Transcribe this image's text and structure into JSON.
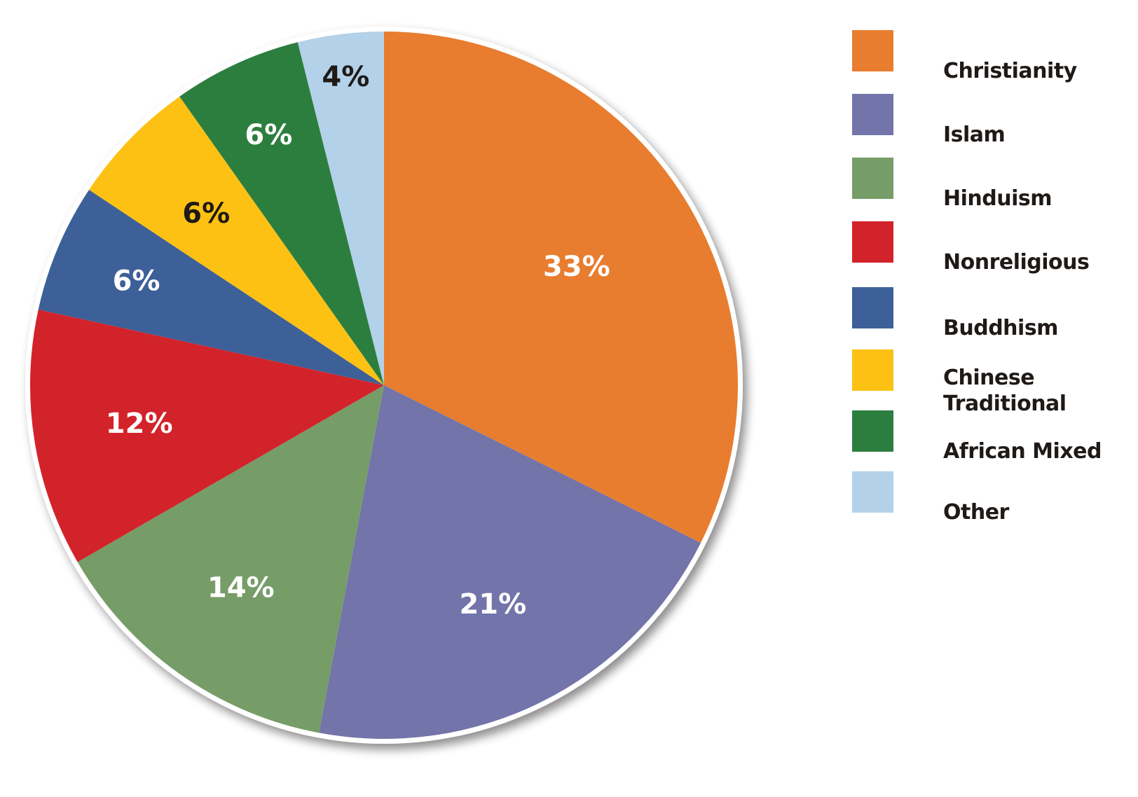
{
  "chart_data": {
    "type": "pie",
    "title": "",
    "start_angle": "12 o'clock",
    "direction": "clockwise",
    "legend_position": "right",
    "categories": [
      "Christianity",
      "Islam",
      "Hinduism",
      "Nonreligious",
      "Buddhism",
      "Chinese Traditional",
      "African Mixed",
      "Other"
    ],
    "values": [
      33,
      21,
      14,
      12,
      6,
      6,
      6,
      4
    ],
    "unit": "%",
    "slices": [
      {
        "label": "Christianity",
        "value": 33,
        "display": "33%",
        "color": "#e87d2f",
        "text_color": "#ffffff"
      },
      {
        "label": "Islam",
        "value": 21,
        "display": "21%",
        "color": "#7374a9",
        "text_color": "#ffffff"
      },
      {
        "label": "Hinduism",
        "value": 14,
        "display": "14%",
        "color": "#769c68",
        "text_color": "#ffffff"
      },
      {
        "label": "Nonreligious",
        "value": 12,
        "display": "12%",
        "color": "#d2232b",
        "text_color": "#ffffff"
      },
      {
        "label": "Buddhism",
        "value": 6,
        "display": "6%",
        "color": "#3d6098",
        "text_color": "#ffffff"
      },
      {
        "label": "Chinese Traditional",
        "value": 6,
        "display": "6%",
        "color": "#fdc114",
        "text_color": "#1f1a17"
      },
      {
        "label": "African Mixed",
        "value": 6,
        "display": "6%",
        "color": "#2c7e3f",
        "text_color": "#ffffff"
      },
      {
        "label": "Other",
        "value": 4,
        "display": "4%",
        "color": "#b3d1e8",
        "text_color": "#1f1a17"
      }
    ]
  },
  "legend": {
    "items": [
      {
        "label": "Christianity",
        "color": "#e87d2f"
      },
      {
        "label": "Islam",
        "color": "#7374a9"
      },
      {
        "label": "Hinduism",
        "color": "#769c68"
      },
      {
        "label": "Nonreligious",
        "color": "#d2232b"
      },
      {
        "label": "Buddhism",
        "color": "#3d6098"
      },
      {
        "label": "Chinese\nTraditional",
        "color": "#fdc114"
      },
      {
        "label": "African Mixed",
        "color": "#2c7e3f"
      },
      {
        "label": "Other",
        "color": "#b3d1e8"
      }
    ]
  }
}
